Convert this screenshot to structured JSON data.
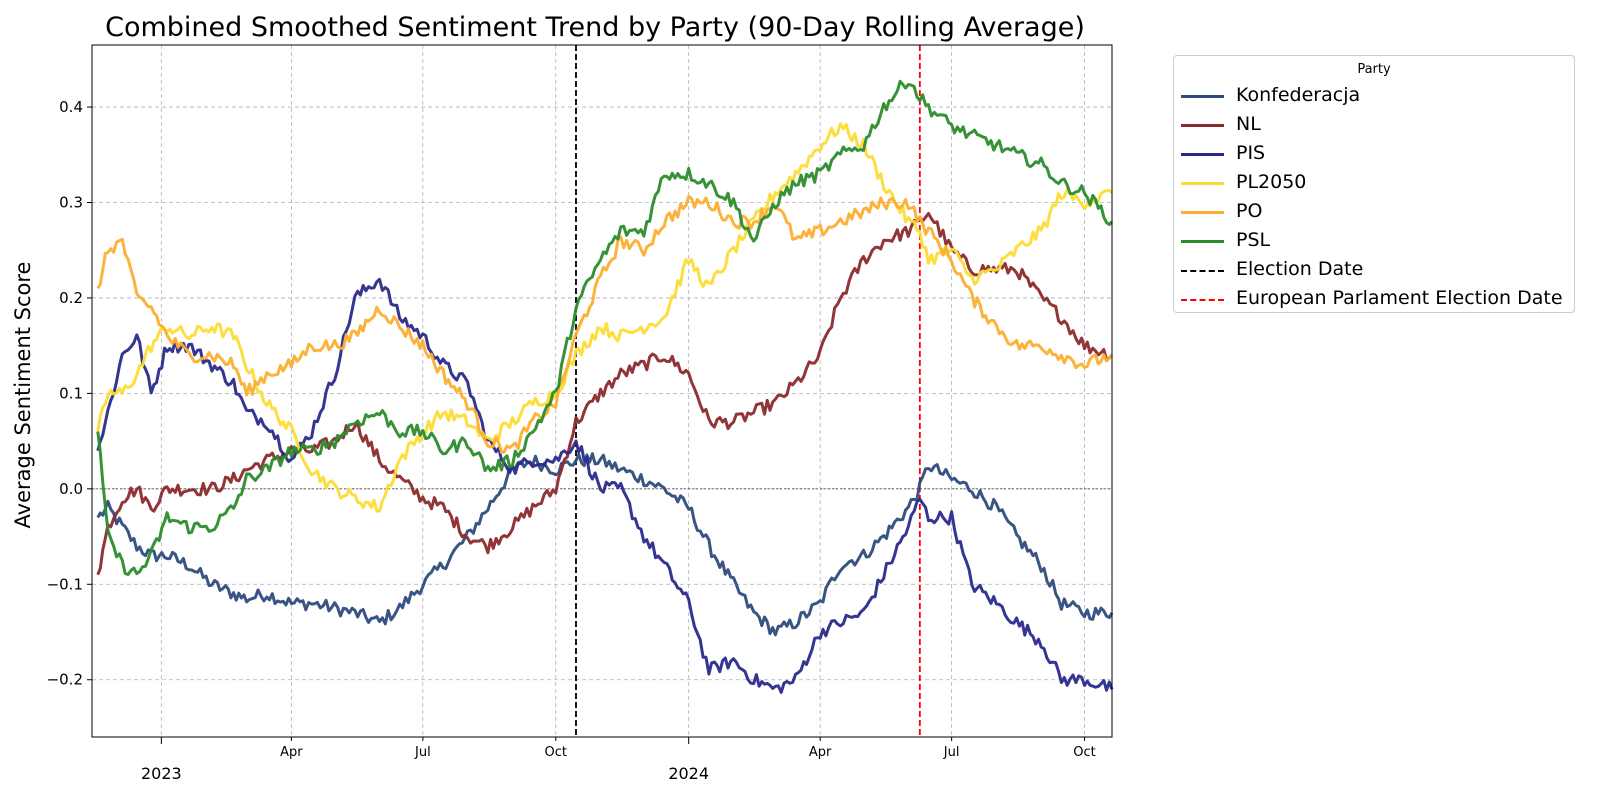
{
  "chart_data": {
    "type": "line",
    "title": "Combined Smoothed Sentiment Trend by Party (90-Day Rolling Average)",
    "xlabel": "",
    "ylabel": "Average Sentiment Score",
    "x_axis": "date",
    "xlim": [
      "2022-11-14",
      "2024-10-20"
    ],
    "ylim": [
      -0.26,
      0.465
    ],
    "yticks": [
      -0.2,
      -0.1,
      0.0,
      0.1,
      0.2,
      0.3,
      0.4
    ],
    "ytick_labels": [
      "−0.2",
      "−0.1",
      "0.0",
      "0.1",
      "0.2",
      "0.3",
      "0.4"
    ],
    "xticks_minor": [
      {
        "date": "2023-04-01",
        "label": "Apr"
      },
      {
        "date": "2023-07-01",
        "label": "Jul"
      },
      {
        "date": "2023-10-01",
        "label": "Oct"
      },
      {
        "date": "2024-04-01",
        "label": "Apr"
      },
      {
        "date": "2024-07-01",
        "label": "Jul"
      },
      {
        "date": "2024-10-01",
        "label": "Oct"
      }
    ],
    "xticks_major": [
      {
        "date": "2023-01-01",
        "label": "2023"
      },
      {
        "date": "2024-01-01",
        "label": "2024"
      }
    ],
    "grid": true,
    "zero_line": 0.0,
    "legend_title": "Party",
    "legend_position": "outside-right",
    "series": [
      {
        "name": "Konfederacja",
        "color": "#2f4b7c",
        "x": [
          "2022-11-18",
          "2022-11-25",
          "2022-12-05",
          "2022-12-15",
          "2022-12-25",
          "2023-01-05",
          "2023-01-20",
          "2023-02-05",
          "2023-02-20",
          "2023-03-01",
          "2023-03-15",
          "2023-04-01",
          "2023-04-15",
          "2023-05-01",
          "2023-05-15",
          "2023-06-01",
          "2023-06-15",
          "2023-07-01",
          "2023-07-15",
          "2023-08-01",
          "2023-08-15",
          "2023-09-01",
          "2023-09-15",
          "2023-10-01",
          "2023-10-15",
          "2023-11-01",
          "2023-11-15",
          "2023-12-01",
          "2023-12-15",
          "2024-01-01",
          "2024-01-15",
          "2024-02-01",
          "2024-02-15",
          "2024-03-01",
          "2024-03-15",
          "2024-04-01",
          "2024-04-15",
          "2024-05-01",
          "2024-05-15",
          "2024-06-01",
          "2024-06-09",
          "2024-06-15",
          "2024-07-01",
          "2024-07-15",
          "2024-08-01",
          "2024-08-15",
          "2024-09-01",
          "2024-09-15",
          "2024-10-01",
          "2024-10-20"
        ],
        "y": [
          -0.03,
          -0.02,
          -0.04,
          -0.06,
          -0.07,
          -0.07,
          -0.08,
          -0.1,
          -0.11,
          -0.115,
          -0.11,
          -0.12,
          -0.12,
          -0.125,
          -0.13,
          -0.14,
          -0.125,
          -0.1,
          -0.08,
          -0.05,
          -0.02,
          0.02,
          0.03,
          0.02,
          0.03,
          0.03,
          0.02,
          0.01,
          0.0,
          -0.02,
          -0.06,
          -0.1,
          -0.13,
          -0.15,
          -0.14,
          -0.12,
          -0.08,
          -0.07,
          -0.05,
          -0.02,
          0.0,
          0.025,
          0.01,
          0.0,
          -0.02,
          -0.05,
          -0.08,
          -0.12,
          -0.13,
          -0.13
        ]
      },
      {
        "name": "NL",
        "color": "#8b2a2d",
        "x": [
          "2022-11-18",
          "2022-11-25",
          "2022-12-05",
          "2022-12-15",
          "2022-12-25",
          "2023-01-05",
          "2023-01-20",
          "2023-02-05",
          "2023-02-20",
          "2023-03-01",
          "2023-03-15",
          "2023-04-01",
          "2023-04-15",
          "2023-05-01",
          "2023-05-15",
          "2023-06-01",
          "2023-06-15",
          "2023-07-01",
          "2023-07-15",
          "2023-08-01",
          "2023-08-15",
          "2023-09-01",
          "2023-09-15",
          "2023-10-01",
          "2023-10-15",
          "2023-11-01",
          "2023-11-15",
          "2023-12-01",
          "2023-12-15",
          "2024-01-01",
          "2024-01-15",
          "2024-02-01",
          "2024-02-15",
          "2024-03-01",
          "2024-03-15",
          "2024-04-01",
          "2024-04-15",
          "2024-05-01",
          "2024-05-15",
          "2024-06-01",
          "2024-06-09",
          "2024-06-15",
          "2024-07-01",
          "2024-07-15",
          "2024-08-01",
          "2024-08-15",
          "2024-09-01",
          "2024-09-15",
          "2024-10-01",
          "2024-10-20"
        ],
        "y": [
          -0.09,
          -0.04,
          -0.01,
          0.0,
          -0.02,
          0.0,
          0.0,
          0.0,
          0.01,
          0.02,
          0.03,
          0.04,
          0.04,
          0.05,
          0.07,
          0.03,
          0.01,
          -0.01,
          -0.02,
          -0.05,
          -0.06,
          -0.04,
          -0.02,
          0.0,
          0.07,
          0.1,
          0.12,
          0.13,
          0.14,
          0.12,
          0.07,
          0.07,
          0.08,
          0.09,
          0.11,
          0.14,
          0.2,
          0.24,
          0.26,
          0.27,
          0.28,
          0.29,
          0.25,
          0.23,
          0.23,
          0.23,
          0.2,
          0.18,
          0.15,
          0.14
        ]
      },
      {
        "name": "PIS",
        "color": "#2a2a8c",
        "x": [
          "2022-11-18",
          "2022-11-25",
          "2022-12-05",
          "2022-12-15",
          "2022-12-25",
          "2023-01-05",
          "2023-01-20",
          "2023-02-05",
          "2023-02-20",
          "2023-03-01",
          "2023-03-15",
          "2023-04-01",
          "2023-04-15",
          "2023-05-01",
          "2023-05-15",
          "2023-06-01",
          "2023-06-15",
          "2023-07-01",
          "2023-07-15",
          "2023-08-01",
          "2023-08-15",
          "2023-09-01",
          "2023-09-15",
          "2023-10-01",
          "2023-10-15",
          "2023-11-01",
          "2023-11-15",
          "2023-12-01",
          "2023-12-15",
          "2024-01-01",
          "2024-01-15",
          "2024-02-01",
          "2024-02-15",
          "2024-03-01",
          "2024-03-15",
          "2024-04-01",
          "2024-04-15",
          "2024-05-01",
          "2024-05-15",
          "2024-06-01",
          "2024-06-09",
          "2024-06-15",
          "2024-07-01",
          "2024-07-15",
          "2024-08-01",
          "2024-08-15",
          "2024-09-01",
          "2024-09-15",
          "2024-10-01",
          "2024-10-20"
        ],
        "y": [
          0.04,
          0.08,
          0.14,
          0.16,
          0.1,
          0.15,
          0.15,
          0.13,
          0.11,
          0.08,
          0.07,
          0.03,
          0.06,
          0.12,
          0.2,
          0.22,
          0.18,
          0.16,
          0.13,
          0.11,
          0.05,
          0.02,
          0.03,
          0.03,
          0.05,
          0.0,
          0.0,
          -0.05,
          -0.08,
          -0.12,
          -0.19,
          -0.18,
          -0.2,
          -0.21,
          -0.2,
          -0.15,
          -0.14,
          -0.13,
          -0.09,
          -0.04,
          -0.01,
          -0.03,
          -0.03,
          -0.1,
          -0.12,
          -0.14,
          -0.16,
          -0.2,
          -0.2,
          -0.21
        ]
      },
      {
        "name": "PL2050",
        "color": "#fcdc34",
        "x": [
          "2022-11-18",
          "2022-11-25",
          "2022-12-05",
          "2022-12-15",
          "2022-12-25",
          "2023-01-05",
          "2023-01-20",
          "2023-02-05",
          "2023-02-20",
          "2023-03-01",
          "2023-03-15",
          "2023-04-01",
          "2023-04-15",
          "2023-05-01",
          "2023-05-15",
          "2023-06-01",
          "2023-06-15",
          "2023-07-01",
          "2023-07-15",
          "2023-08-01",
          "2023-08-15",
          "2023-09-01",
          "2023-09-15",
          "2023-10-01",
          "2023-10-15",
          "2023-11-01",
          "2023-11-15",
          "2023-12-01",
          "2023-12-15",
          "2024-01-01",
          "2024-01-15",
          "2024-02-01",
          "2024-02-15",
          "2024-03-01",
          "2024-03-15",
          "2024-04-01",
          "2024-04-15",
          "2024-05-01",
          "2024-05-15",
          "2024-06-01",
          "2024-06-09",
          "2024-06-15",
          "2024-07-01",
          "2024-07-15",
          "2024-08-01",
          "2024-08-15",
          "2024-09-01",
          "2024-09-15",
          "2024-10-01",
          "2024-10-20"
        ],
        "y": [
          0.06,
          0.1,
          0.1,
          0.12,
          0.15,
          0.17,
          0.16,
          0.17,
          0.16,
          0.13,
          0.09,
          0.06,
          0.02,
          0.0,
          -0.01,
          -0.02,
          0.03,
          0.06,
          0.08,
          0.07,
          0.05,
          0.07,
          0.09,
          0.1,
          0.14,
          0.17,
          0.16,
          0.17,
          0.18,
          0.24,
          0.21,
          0.25,
          0.28,
          0.31,
          0.33,
          0.36,
          0.38,
          0.36,
          0.32,
          0.28,
          0.27,
          0.24,
          0.25,
          0.22,
          0.23,
          0.25,
          0.27,
          0.31,
          0.3,
          0.31
        ]
      },
      {
        "name": "PO",
        "color": "#fcaf30",
        "x": [
          "2022-11-18",
          "2022-11-25",
          "2022-12-05",
          "2022-12-15",
          "2022-12-25",
          "2023-01-05",
          "2023-01-20",
          "2023-02-05",
          "2023-02-20",
          "2023-03-01",
          "2023-03-15",
          "2023-04-01",
          "2023-04-15",
          "2023-05-01",
          "2023-05-15",
          "2023-06-01",
          "2023-06-15",
          "2023-07-01",
          "2023-07-15",
          "2023-08-01",
          "2023-08-15",
          "2023-09-01",
          "2023-09-15",
          "2023-10-01",
          "2023-10-15",
          "2023-11-01",
          "2023-11-15",
          "2023-12-01",
          "2023-12-15",
          "2024-01-01",
          "2024-01-15",
          "2024-02-01",
          "2024-02-15",
          "2024-03-01",
          "2024-03-15",
          "2024-04-01",
          "2024-04-15",
          "2024-05-01",
          "2024-05-15",
          "2024-06-01",
          "2024-06-09",
          "2024-06-15",
          "2024-07-01",
          "2024-07-15",
          "2024-08-01",
          "2024-08-15",
          "2024-09-01",
          "2024-09-15",
          "2024-10-01",
          "2024-10-20"
        ],
        "y": [
          0.21,
          0.25,
          0.26,
          0.2,
          0.19,
          0.16,
          0.14,
          0.14,
          0.13,
          0.1,
          0.12,
          0.13,
          0.15,
          0.15,
          0.16,
          0.19,
          0.17,
          0.15,
          0.12,
          0.09,
          0.05,
          0.04,
          0.07,
          0.09,
          0.16,
          0.22,
          0.26,
          0.25,
          0.28,
          0.3,
          0.3,
          0.28,
          0.28,
          0.3,
          0.26,
          0.27,
          0.28,
          0.29,
          0.3,
          0.3,
          0.28,
          0.27,
          0.24,
          0.2,
          0.17,
          0.15,
          0.15,
          0.14,
          0.13,
          0.14
        ]
      },
      {
        "name": "PSL",
        "color": "#2c8c2c",
        "x": [
          "2022-11-18",
          "2022-11-25",
          "2022-12-05",
          "2022-12-15",
          "2022-12-25",
          "2023-01-05",
          "2023-01-20",
          "2023-02-05",
          "2023-02-20",
          "2023-03-01",
          "2023-03-15",
          "2023-04-01",
          "2023-04-15",
          "2023-05-01",
          "2023-05-15",
          "2023-06-01",
          "2023-06-15",
          "2023-07-01",
          "2023-07-15",
          "2023-08-01",
          "2023-08-15",
          "2023-09-01",
          "2023-09-15",
          "2023-10-01",
          "2023-10-15",
          "2023-11-01",
          "2023-11-15",
          "2023-12-01",
          "2023-12-15",
          "2024-01-01",
          "2024-01-15",
          "2024-02-01",
          "2024-02-15",
          "2024-03-01",
          "2024-03-15",
          "2024-04-01",
          "2024-04-15",
          "2024-05-01",
          "2024-05-15",
          "2024-06-01",
          "2024-06-09",
          "2024-06-15",
          "2024-07-01",
          "2024-07-15",
          "2024-08-01",
          "2024-08-15",
          "2024-09-01",
          "2024-09-15",
          "2024-10-01",
          "2024-10-20"
        ],
        "y": [
          0.06,
          -0.05,
          -0.08,
          -0.09,
          -0.07,
          -0.03,
          -0.04,
          -0.04,
          -0.02,
          0.01,
          0.02,
          0.04,
          0.04,
          0.05,
          0.07,
          0.08,
          0.06,
          0.06,
          0.04,
          0.05,
          0.02,
          0.03,
          0.06,
          0.1,
          0.19,
          0.24,
          0.27,
          0.27,
          0.33,
          0.33,
          0.32,
          0.3,
          0.26,
          0.3,
          0.32,
          0.33,
          0.35,
          0.36,
          0.4,
          0.43,
          0.41,
          0.4,
          0.38,
          0.37,
          0.36,
          0.35,
          0.34,
          0.32,
          0.31,
          0.28
        ]
      }
    ],
    "vlines": [
      {
        "name": "Election Date",
        "date": "2023-10-15",
        "color": "#000000",
        "style": "dashed"
      },
      {
        "name": "European Parlament Election Date",
        "date": "2024-06-09",
        "color": "#ff0000",
        "style": "dashed"
      }
    ]
  }
}
